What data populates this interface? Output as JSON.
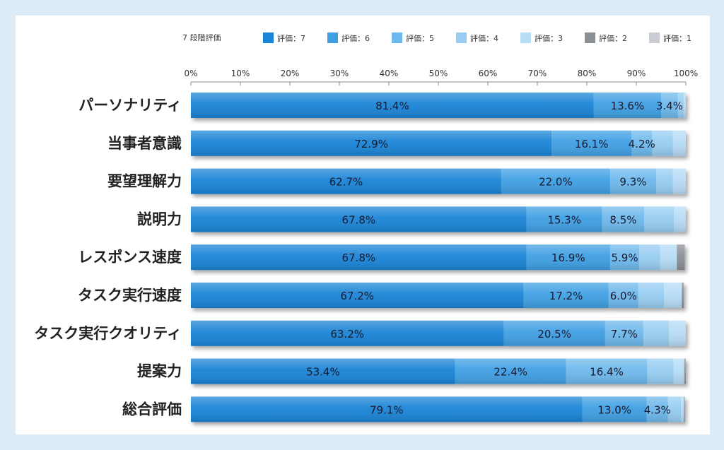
{
  "chart_data": {
    "type": "bar",
    "orientation": "horizontal",
    "stacked": true,
    "legend_title": "7 段階評価",
    "legend_position": "top",
    "x_ticks": [
      "0%",
      "10%",
      "20%",
      "30%",
      "40%",
      "50%",
      "60%",
      "70%",
      "80%",
      "90%",
      "100%"
    ],
    "xlim": [
      0,
      100
    ],
    "categories": [
      "パーソナリティ",
      "当事者意識",
      "要望理解力",
      "説明力",
      "レスポンス速度",
      "タスク実行速度",
      "タスク実行クオリティ",
      "提案力",
      "総合評価"
    ],
    "series": [
      {
        "name": "評価：7",
        "color": "#1a84d6",
        "values": [
          81.4,
          72.9,
          62.7,
          67.8,
          67.8,
          67.2,
          63.2,
          53.4,
          79.1
        ]
      },
      {
        "name": "評価：6",
        "color": "#3f9fe3",
        "values": [
          13.6,
          16.1,
          22.0,
          15.3,
          16.9,
          17.2,
          20.5,
          22.4,
          13.0
        ]
      },
      {
        "name": "評価：5",
        "color": "#6db8ec",
        "values": [
          3.4,
          4.2,
          9.3,
          8.5,
          5.9,
          6.0,
          7.7,
          16.4,
          4.3
        ]
      },
      {
        "name": "評価：4",
        "color": "#97cdf2",
        "values": [
          1.2,
          4.2,
          3.4,
          6.0,
          4.2,
          5.2,
          5.2,
          5.3,
          2.6
        ]
      },
      {
        "name": "評価：3",
        "color": "#b6dcf6",
        "values": [
          0.4,
          2.6,
          2.6,
          2.4,
          3.4,
          3.6,
          3.4,
          2.2,
          0.6
        ]
      },
      {
        "name": "評価：2",
        "color": "#8a8f94",
        "values": [
          0.0,
          0.0,
          0.0,
          0.0,
          1.6,
          0.4,
          0.0,
          0.3,
          0.2
        ]
      },
      {
        "name": "評価：1",
        "color": "#c9cdd1",
        "values": [
          0.0,
          0.0,
          0.0,
          0.0,
          0.0,
          0.0,
          0.0,
          0.0,
          0.0
        ]
      }
    ],
    "data_labels": [
      [
        "81.4%",
        "13.6%",
        "3.4%"
      ],
      [
        "72.9%",
        "16.1%",
        "4.2%"
      ],
      [
        "62.7%",
        "22.0%",
        "9.3%"
      ],
      [
        "67.8%",
        "15.3%",
        "8.5%"
      ],
      [
        "67.8%",
        "16.9%",
        "5.9%"
      ],
      [
        "67.2%",
        "17.2%",
        "6.0%"
      ],
      [
        "63.2%",
        "20.5%",
        "7.7%"
      ],
      [
        "53.4%",
        "22.4%",
        "16.4%"
      ],
      [
        "79.1%",
        "13.0%",
        "4.3%"
      ]
    ],
    "grid": false
  }
}
